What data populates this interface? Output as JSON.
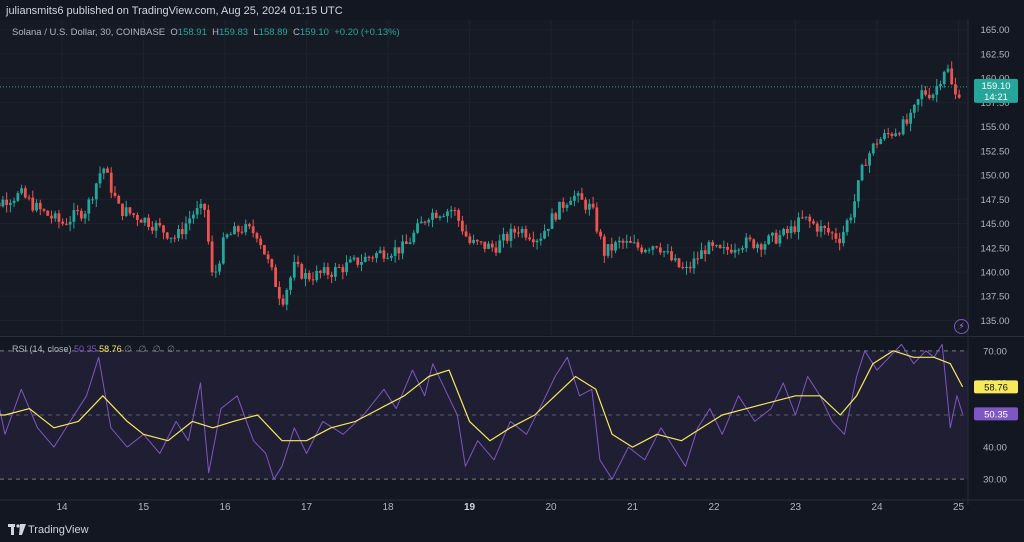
{
  "header": {
    "publisher_line": "juliansmits6 published on TradingView.com, Aug 25, 2024 01:15 UTC"
  },
  "legend": {
    "symbol": "Solana / U.S. Dollar, 30, COINBASE",
    "o_label": "O",
    "o_value": "158.91",
    "h_label": "H",
    "h_value": "159.83",
    "l_label": "L",
    "l_value": "158.89",
    "c_label": "C",
    "c_value": "159.10",
    "change": "+0.20 (+0.13%)"
  },
  "rsi_legend": {
    "name": "RSI (14, close)",
    "rsi_value": "50.35",
    "ma_value": "58.76",
    "icons": "∅ ∅ ∅ ∅"
  },
  "price_badge": {
    "price": "159.10",
    "countdown": "14:21"
  },
  "rsi_badges": {
    "ma": "58.76",
    "rsi": "50.35"
  },
  "footer": {
    "brand": "TradingView"
  },
  "colors": {
    "background": "#131722",
    "up": "#26a69a",
    "down": "#ef5350",
    "rsi_line": "#7e57c2",
    "rsi_ma": "#f7e95c",
    "rsi_band": "#2a2440",
    "grid": "#1e222d"
  },
  "chart_data": [
    {
      "type": "candlestick",
      "title": "Solana / U.S. Dollar, 30, COINBASE",
      "ylim": [
        133.5,
        166
      ],
      "yticks": [
        "165.00",
        "162.50",
        "160.00",
        "157.50",
        "155.00",
        "152.50",
        "150.00",
        "147.50",
        "145.00",
        "142.50",
        "140.00",
        "137.50",
        "135.00"
      ],
      "xticks": [
        "14",
        "15",
        "16",
        "17",
        "18",
        "19",
        "20",
        "21",
        "22",
        "23",
        "24",
        "25"
      ],
      "last_price": 159.1,
      "close_path": [
        {
          "day": 13.0,
          "price": 146.0
        },
        {
          "day": 13.3,
          "price": 147.5
        },
        {
          "day": 13.5,
          "price": 148.0
        },
        {
          "day": 13.7,
          "price": 146.5
        },
        {
          "day": 14.0,
          "price": 145.0
        },
        {
          "day": 14.3,
          "price": 146.5
        },
        {
          "day": 14.5,
          "price": 151.0
        },
        {
          "day": 14.7,
          "price": 146.5
        },
        {
          "day": 15.0,
          "price": 145.5
        },
        {
          "day": 15.2,
          "price": 144.5
        },
        {
          "day": 15.4,
          "price": 143.5
        },
        {
          "day": 15.6,
          "price": 146.0
        },
        {
          "day": 15.75,
          "price": 146.5
        },
        {
          "day": 15.85,
          "price": 139.0
        },
        {
          "day": 16.0,
          "price": 143.5
        },
        {
          "day": 16.2,
          "price": 144.5
        },
        {
          "day": 16.4,
          "price": 144.0
        },
        {
          "day": 16.55,
          "price": 140.5
        },
        {
          "day": 16.7,
          "price": 137.0
        },
        {
          "day": 16.85,
          "price": 140.5
        },
        {
          "day": 17.0,
          "price": 139.5
        },
        {
          "day": 17.3,
          "price": 140.0
        },
        {
          "day": 17.6,
          "price": 141.0
        },
        {
          "day": 17.9,
          "price": 142.0
        },
        {
          "day": 18.2,
          "price": 142.5
        },
        {
          "day": 18.5,
          "price": 146.0
        },
        {
          "day": 18.8,
          "price": 146.5
        },
        {
          "day": 19.0,
          "price": 143.0
        },
        {
          "day": 19.3,
          "price": 142.5
        },
        {
          "day": 19.6,
          "price": 144.5
        },
        {
          "day": 19.85,
          "price": 143.5
        },
        {
          "day": 20.05,
          "price": 146.0
        },
        {
          "day": 20.25,
          "price": 148.0
        },
        {
          "day": 20.5,
          "price": 146.5
        },
        {
          "day": 20.65,
          "price": 142.0
        },
        {
          "day": 20.85,
          "price": 143.0
        },
        {
          "day": 21.1,
          "price": 142.5
        },
        {
          "day": 21.3,
          "price": 143.0
        },
        {
          "day": 21.5,
          "price": 141.0
        },
        {
          "day": 21.65,
          "price": 140.0
        },
        {
          "day": 21.9,
          "price": 142.5
        },
        {
          "day": 22.1,
          "price": 142.0
        },
        {
          "day": 22.3,
          "price": 143.0
        },
        {
          "day": 22.6,
          "price": 143.0
        },
        {
          "day": 22.9,
          "price": 144.0
        },
        {
          "day": 23.1,
          "price": 145.5
        },
        {
          "day": 23.3,
          "price": 144.5
        },
        {
          "day": 23.55,
          "price": 143.5
        },
        {
          "day": 23.7,
          "price": 146.5
        },
        {
          "day": 23.85,
          "price": 151.5
        },
        {
          "day": 24.0,
          "price": 153.5
        },
        {
          "day": 24.2,
          "price": 154.5
        },
        {
          "day": 24.4,
          "price": 155.5
        },
        {
          "day": 24.55,
          "price": 158.5
        },
        {
          "day": 24.7,
          "price": 158.5
        },
        {
          "day": 24.85,
          "price": 161.5
        },
        {
          "day": 24.95,
          "price": 158.0
        },
        {
          "day": 25.05,
          "price": 159.1
        }
      ]
    },
    {
      "type": "line",
      "title": "RSI (14, close)",
      "ylim": [
        26,
        74
      ],
      "yticks": [
        "70.00",
        "60.00",
        "50.00",
        "40.00",
        "30.00"
      ],
      "bands": [
        70,
        30
      ],
      "series": [
        {
          "name": "RSI",
          "last": 50.35,
          "points": [
            {
              "day": 13.0,
              "v": 50
            },
            {
              "day": 13.15,
              "v": 62
            },
            {
              "day": 13.3,
              "v": 44
            },
            {
              "day": 13.5,
              "v": 58
            },
            {
              "day": 13.7,
              "v": 46
            },
            {
              "day": 13.9,
              "v": 40
            },
            {
              "day": 14.1,
              "v": 48
            },
            {
              "day": 14.3,
              "v": 56
            },
            {
              "day": 14.45,
              "v": 68
            },
            {
              "day": 14.6,
              "v": 46
            },
            {
              "day": 14.8,
              "v": 40
            },
            {
              "day": 15.0,
              "v": 44
            },
            {
              "day": 15.2,
              "v": 38
            },
            {
              "day": 15.4,
              "v": 48
            },
            {
              "day": 15.55,
              "v": 42
            },
            {
              "day": 15.7,
              "v": 60
            },
            {
              "day": 15.8,
              "v": 32
            },
            {
              "day": 15.95,
              "v": 52
            },
            {
              "day": 16.15,
              "v": 56
            },
            {
              "day": 16.35,
              "v": 42
            },
            {
              "day": 16.5,
              "v": 38
            },
            {
              "day": 16.6,
              "v": 30
            },
            {
              "day": 16.7,
              "v": 34
            },
            {
              "day": 16.85,
              "v": 46
            },
            {
              "day": 17.0,
              "v": 38
            },
            {
              "day": 17.2,
              "v": 48
            },
            {
              "day": 17.45,
              "v": 44
            },
            {
              "day": 17.7,
              "v": 50
            },
            {
              "day": 17.95,
              "v": 58
            },
            {
              "day": 18.1,
              "v": 52
            },
            {
              "day": 18.3,
              "v": 64
            },
            {
              "day": 18.45,
              "v": 56
            },
            {
              "day": 18.55,
              "v": 66
            },
            {
              "day": 18.7,
              "v": 58
            },
            {
              "day": 18.85,
              "v": 50
            },
            {
              "day": 18.95,
              "v": 34
            },
            {
              "day": 19.1,
              "v": 42
            },
            {
              "day": 19.3,
              "v": 36
            },
            {
              "day": 19.5,
              "v": 48
            },
            {
              "day": 19.7,
              "v": 44
            },
            {
              "day": 19.9,
              "v": 54
            },
            {
              "day": 20.05,
              "v": 62
            },
            {
              "day": 20.2,
              "v": 68
            },
            {
              "day": 20.35,
              "v": 56
            },
            {
              "day": 20.5,
              "v": 58
            },
            {
              "day": 20.6,
              "v": 36
            },
            {
              "day": 20.75,
              "v": 30
            },
            {
              "day": 20.95,
              "v": 40
            },
            {
              "day": 21.15,
              "v": 36
            },
            {
              "day": 21.35,
              "v": 46
            },
            {
              "day": 21.5,
              "v": 40
            },
            {
              "day": 21.65,
              "v": 34
            },
            {
              "day": 21.8,
              "v": 46
            },
            {
              "day": 21.95,
              "v": 52
            },
            {
              "day": 22.1,
              "v": 44
            },
            {
              "day": 22.3,
              "v": 56
            },
            {
              "day": 22.5,
              "v": 48
            },
            {
              "day": 22.7,
              "v": 52
            },
            {
              "day": 22.85,
              "v": 60
            },
            {
              "day": 23.0,
              "v": 50
            },
            {
              "day": 23.15,
              "v": 62
            },
            {
              "day": 23.3,
              "v": 56
            },
            {
              "day": 23.45,
              "v": 48
            },
            {
              "day": 23.6,
              "v": 44
            },
            {
              "day": 23.75,
              "v": 62
            },
            {
              "day": 23.85,
              "v": 70
            },
            {
              "day": 24.0,
              "v": 64
            },
            {
              "day": 24.15,
              "v": 68
            },
            {
              "day": 24.3,
              "v": 72
            },
            {
              "day": 24.45,
              "v": 66
            },
            {
              "day": 24.6,
              "v": 70
            },
            {
              "day": 24.7,
              "v": 68
            },
            {
              "day": 24.8,
              "v": 72
            },
            {
              "day": 24.9,
              "v": 46
            },
            {
              "day": 24.98,
              "v": 56
            },
            {
              "day": 25.05,
              "v": 50.35
            }
          ]
        },
        {
          "name": "RSI-based MA",
          "last": 58.76,
          "points": [
            {
              "day": 13.0,
              "v": 50
            },
            {
              "day": 13.3,
              "v": 50
            },
            {
              "day": 13.6,
              "v": 52
            },
            {
              "day": 13.9,
              "v": 46
            },
            {
              "day": 14.2,
              "v": 48
            },
            {
              "day": 14.5,
              "v": 56
            },
            {
              "day": 14.8,
              "v": 48
            },
            {
              "day": 15.0,
              "v": 44
            },
            {
              "day": 15.3,
              "v": 42
            },
            {
              "day": 15.6,
              "v": 48
            },
            {
              "day": 15.85,
              "v": 46
            },
            {
              "day": 16.1,
              "v": 48
            },
            {
              "day": 16.4,
              "v": 50
            },
            {
              "day": 16.7,
              "v": 42
            },
            {
              "day": 17.0,
              "v": 42
            },
            {
              "day": 17.3,
              "v": 46
            },
            {
              "day": 17.6,
              "v": 48
            },
            {
              "day": 17.9,
              "v": 52
            },
            {
              "day": 18.2,
              "v": 56
            },
            {
              "day": 18.5,
              "v": 62
            },
            {
              "day": 18.75,
              "v": 64
            },
            {
              "day": 19.0,
              "v": 48
            },
            {
              "day": 19.25,
              "v": 42
            },
            {
              "day": 19.5,
              "v": 46
            },
            {
              "day": 19.8,
              "v": 50
            },
            {
              "day": 20.05,
              "v": 56
            },
            {
              "day": 20.3,
              "v": 62
            },
            {
              "day": 20.55,
              "v": 58
            },
            {
              "day": 20.75,
              "v": 44
            },
            {
              "day": 21.0,
              "v": 40
            },
            {
              "day": 21.3,
              "v": 44
            },
            {
              "day": 21.6,
              "v": 42
            },
            {
              "day": 21.85,
              "v": 46
            },
            {
              "day": 22.1,
              "v": 50
            },
            {
              "day": 22.4,
              "v": 52
            },
            {
              "day": 22.7,
              "v": 54
            },
            {
              "day": 23.0,
              "v": 56
            },
            {
              "day": 23.3,
              "v": 56
            },
            {
              "day": 23.55,
              "v": 50
            },
            {
              "day": 23.75,
              "v": 56
            },
            {
              "day": 23.95,
              "v": 66
            },
            {
              "day": 24.2,
              "v": 70
            },
            {
              "day": 24.45,
              "v": 68
            },
            {
              "day": 24.7,
              "v": 68
            },
            {
              "day": 24.9,
              "v": 66
            },
            {
              "day": 25.05,
              "v": 58.76
            }
          ]
        }
      ]
    }
  ]
}
